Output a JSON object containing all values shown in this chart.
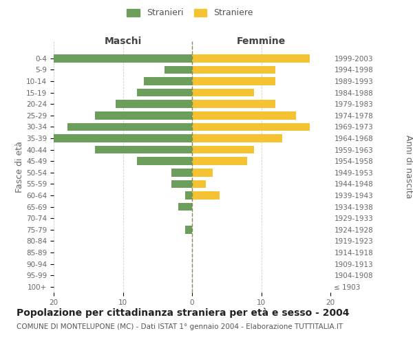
{
  "age_groups": [
    "100+",
    "95-99",
    "90-94",
    "85-89",
    "80-84",
    "75-79",
    "70-74",
    "65-69",
    "60-64",
    "55-59",
    "50-54",
    "45-49",
    "40-44",
    "35-39",
    "30-34",
    "25-29",
    "20-24",
    "15-19",
    "10-14",
    "5-9",
    "0-4"
  ],
  "birth_years": [
    "≤ 1903",
    "1904-1908",
    "1909-1913",
    "1914-1918",
    "1919-1923",
    "1924-1928",
    "1929-1933",
    "1934-1938",
    "1939-1943",
    "1944-1948",
    "1949-1953",
    "1954-1958",
    "1959-1963",
    "1964-1968",
    "1969-1973",
    "1974-1978",
    "1979-1983",
    "1984-1988",
    "1989-1993",
    "1994-1998",
    "1999-2003"
  ],
  "males": [
    0,
    0,
    0,
    0,
    0,
    1,
    0,
    2,
    1,
    3,
    3,
    8,
    14,
    21,
    18,
    14,
    11,
    8,
    7,
    4,
    21
  ],
  "females": [
    0,
    0,
    0,
    0,
    0,
    0,
    0,
    0,
    4,
    2,
    3,
    8,
    9,
    13,
    17,
    15,
    12,
    9,
    12,
    12,
    17
  ],
  "male_color": "#6a9e5a",
  "female_color": "#f5c232",
  "grid_color": "#cccccc",
  "bg_color": "#ffffff",
  "title": "Popolazione per cittadinanza straniera per età e sesso - 2004",
  "subtitle": "COMUNE DI MONTELUPONE (MC) - Dati ISTAT 1° gennaio 2004 - Elaborazione TUTTITALIA.IT",
  "ylabel_left": "Fasce di età",
  "ylabel_right": "Anni di nascita",
  "xlabel_left": "Maschi",
  "xlabel_right": "Femmine",
  "legend_male": "Stranieri",
  "legend_female": "Straniere",
  "xlim": 20,
  "title_fontsize": 10,
  "subtitle_fontsize": 7.5,
  "label_fontsize": 9,
  "tick_fontsize": 7.5
}
